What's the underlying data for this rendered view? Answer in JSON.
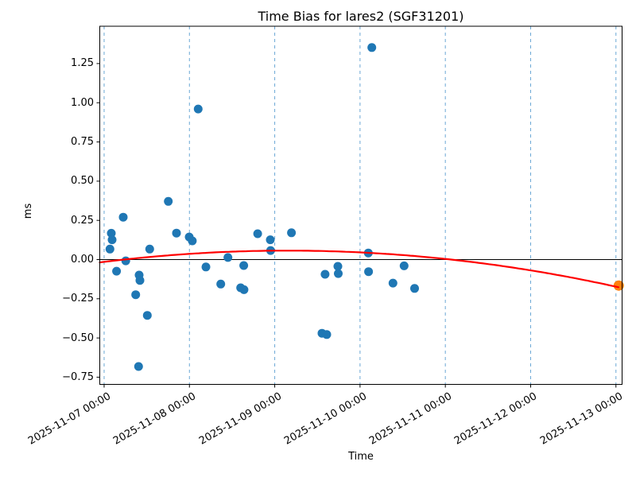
{
  "window": {
    "title": "Time Bias for lares2 (SGF31201)"
  },
  "chart_data": {
    "type": "scatter",
    "title": "Time Bias for lares2 (SGF31201)",
    "xlabel": "Time",
    "ylabel": "ms",
    "x_unit": "days since 2025-11-07 00:00",
    "xlim": [
      -0.051,
      6.072
    ],
    "ylim": [
      -0.796,
      1.488
    ],
    "grid": "vertical dashed lines at each day tick",
    "legend": "none",
    "x_ticks": [
      {
        "t": 0,
        "label": "2025-11-07 00:00"
      },
      {
        "t": 1,
        "label": "2025-11-08 00:00"
      },
      {
        "t": 2,
        "label": "2025-11-09 00:00"
      },
      {
        "t": 3,
        "label": "2025-11-10 00:00"
      },
      {
        "t": 4,
        "label": "2025-11-11 00:00"
      },
      {
        "t": 5,
        "label": "2025-11-12 00:00"
      },
      {
        "t": 6,
        "label": "2025-11-13 00:00"
      }
    ],
    "y_ticks": [
      {
        "v": -0.75,
        "label": "−0.75"
      },
      {
        "v": -0.5,
        "label": "−0.50"
      },
      {
        "v": -0.25,
        "label": "−0.25"
      },
      {
        "v": 0.0,
        "label": "0.00"
      },
      {
        "v": 0.25,
        "label": "0.25"
      },
      {
        "v": 0.5,
        "label": "0.50"
      },
      {
        "v": 0.75,
        "label": "0.75"
      },
      {
        "v": 1.0,
        "label": "1.00"
      },
      {
        "v": 1.25,
        "label": "1.25"
      }
    ],
    "series": [
      {
        "name": "time-bias-points",
        "marker": "circle",
        "color": "#1f77b4",
        "radius": 5.5,
        "points": [
          [
            0.068,
            0.067
          ],
          [
            0.084,
            0.168
          ],
          [
            0.093,
            0.126
          ],
          [
            0.146,
            -0.074
          ],
          [
            0.224,
            0.27
          ],
          [
            0.254,
            -0.008
          ],
          [
            0.37,
            -0.224
          ],
          [
            0.404,
            -0.682
          ],
          [
            0.41,
            -0.099
          ],
          [
            0.42,
            -0.133
          ],
          [
            0.506,
            -0.356
          ],
          [
            0.534,
            0.067
          ],
          [
            0.752,
            0.371
          ],
          [
            0.848,
            0.169
          ],
          [
            0.997,
            0.144
          ],
          [
            1.034,
            0.119
          ],
          [
            1.103,
            0.96
          ],
          [
            1.193,
            -0.047
          ],
          [
            1.367,
            -0.156
          ],
          [
            1.451,
            0.013
          ],
          [
            1.6,
            -0.18
          ],
          [
            1.64,
            -0.192
          ],
          [
            1.637,
            -0.038
          ],
          [
            1.8,
            0.165
          ],
          [
            1.948,
            0.126
          ],
          [
            1.952,
            0.058
          ],
          [
            2.196,
            0.171
          ],
          [
            2.554,
            -0.47
          ],
          [
            2.61,
            -0.478
          ],
          [
            2.59,
            -0.094
          ],
          [
            2.74,
            -0.043
          ],
          [
            2.745,
            -0.089
          ],
          [
            3.097,
            0.042
          ],
          [
            3.1,
            -0.077
          ],
          [
            3.138,
            1.352
          ],
          [
            3.386,
            -0.15
          ],
          [
            3.517,
            -0.04
          ],
          [
            3.64,
            -0.184
          ]
        ]
      },
      {
        "name": "latest-extrapolated-point",
        "marker": "circle",
        "color": "#ff7f0e",
        "radius": 6.5,
        "points": [
          [
            6.033,
            -0.166
          ]
        ]
      },
      {
        "name": "quadratic-fit-curve",
        "marker": "line",
        "color": "#ff0000",
        "width": 2.2,
        "fit": {
          "form": "a*(t-t_peak)^2 + peak",
          "a": -0.0155,
          "t_peak": 2.15,
          "peak": 0.057,
          "t_start": -0.051,
          "t_end": 6.033
        }
      }
    ],
    "colors": {
      "scatter_blue": "#1f77b4",
      "latest_orange": "#ff7f0e",
      "fit_red": "#ff0000",
      "gridline_blue": "#6ba8d5",
      "axis_frame": "#000000",
      "zero_line": "#000000",
      "background": "#ffffff"
    }
  }
}
